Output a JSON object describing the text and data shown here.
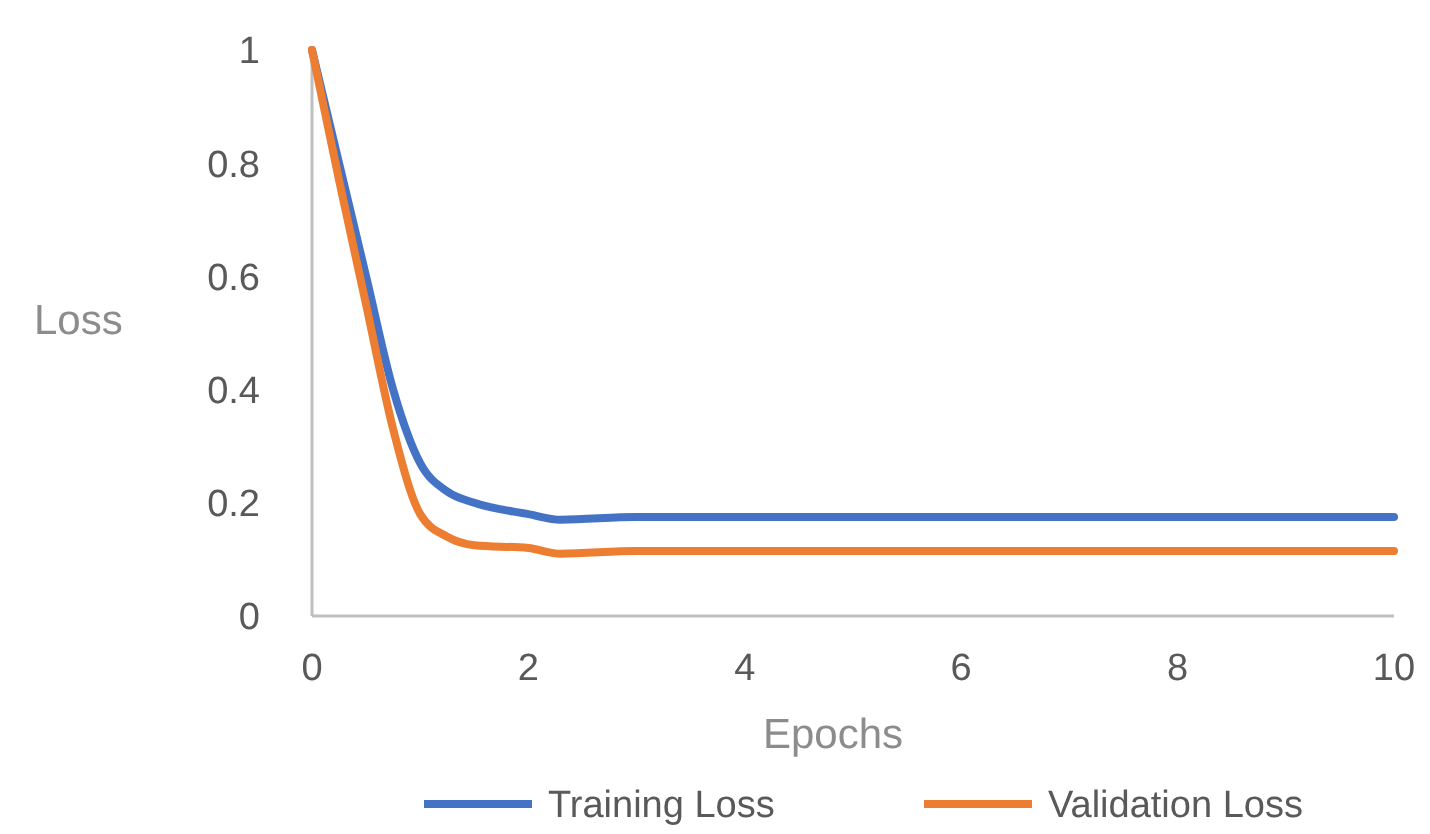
{
  "chart_data": {
    "type": "line",
    "xlabel": "Epochs",
    "ylabel": "Loss",
    "x": [
      0,
      0.25,
      0.5,
      0.75,
      1,
      1.25,
      1.5,
      2,
      2.3,
      3,
      4,
      6,
      8,
      10
    ],
    "series": [
      {
        "name": "Training Loss",
        "color": "#4472c4",
        "values": [
          1,
          0.8,
          0.6,
          0.4,
          0.27,
          0.22,
          0.2,
          0.18,
          0.17,
          0.175,
          0.175,
          0.175,
          0.175,
          0.175
        ]
      },
      {
        "name": "Validation Loss",
        "color": "#ed7d31",
        "values": [
          1,
          0.77,
          0.55,
          0.33,
          0.18,
          0.14,
          0.125,
          0.12,
          0.11,
          0.115,
          0.115,
          0.115,
          0.115,
          0.115
        ]
      }
    ],
    "xlim": [
      0,
      10
    ],
    "xticks": [
      0,
      2,
      4,
      6,
      8,
      10
    ],
    "ylim": [
      0,
      1
    ],
    "yticks": [
      0,
      0.2,
      0.4,
      0.6,
      0.8,
      1
    ],
    "grid": false,
    "legend": "bottom",
    "marker": "none",
    "line_style": "solid"
  }
}
